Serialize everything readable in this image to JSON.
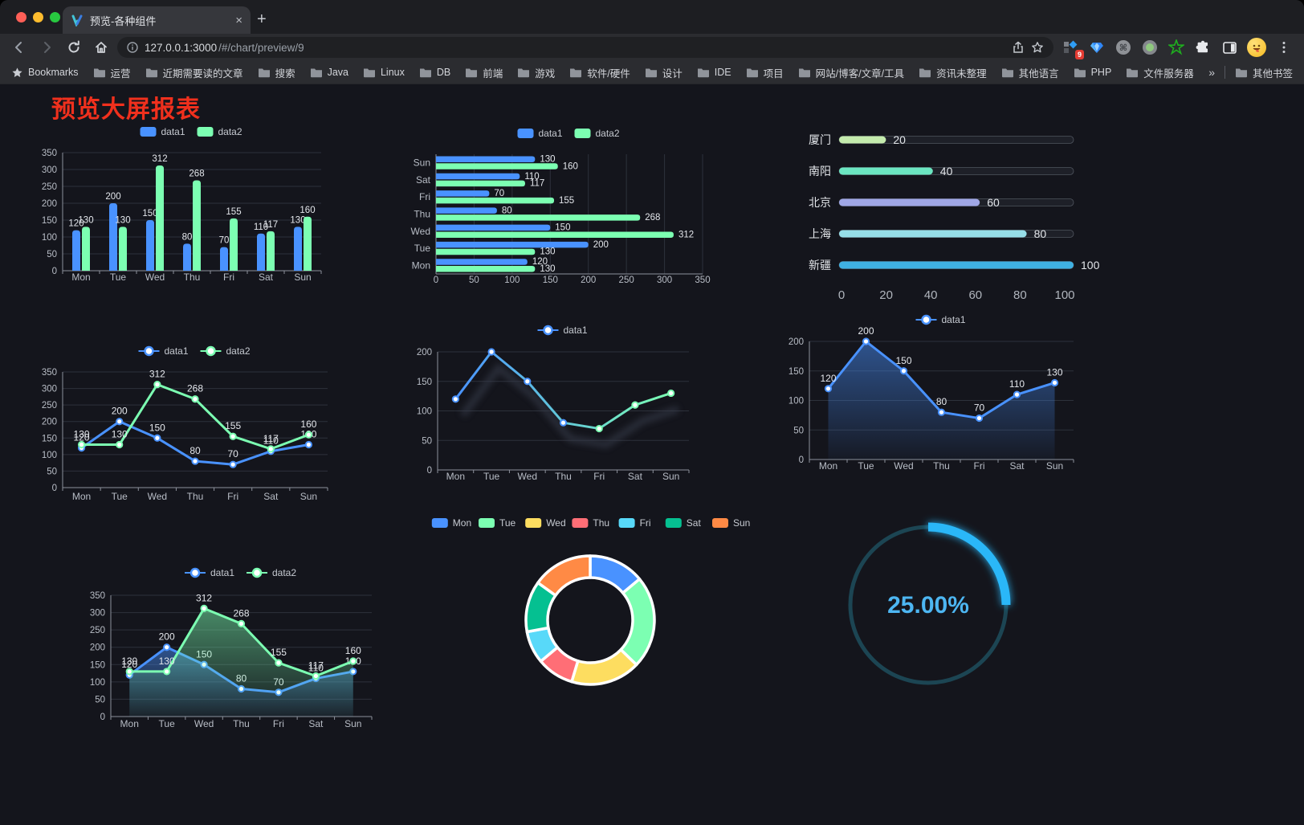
{
  "browser": {
    "tab_title": "预览-各种组件",
    "close_glyph": "×",
    "newtab_glyph": "+",
    "url_host": "127.0.0.1:3000",
    "url_path": "/#/chart/preview/9",
    "extension_badge": "9",
    "bookmarks_label": "Bookmarks",
    "bookmarks": [
      "运营",
      "近期需要读的文章",
      "搜索",
      "Java",
      "Linux",
      "DB",
      "前端",
      "游戏",
      "软件/硬件",
      "设计",
      "IDE",
      "项目",
      "网站/博客/文章/工具",
      "资讯未整理",
      "其他语言",
      "PHP",
      "文件服务器"
    ],
    "bookmarks_overflow": "»",
    "other_bookmarks": "其他书签"
  },
  "page": {
    "title": "预览大屏报表",
    "title_color": "#f0301d",
    "background": "#14151c"
  },
  "colors": {
    "axis_label": "#b8bdc6",
    "grid_line": "#2d313b",
    "axis_line": "#8d919b",
    "value_label": "#e4e7ec",
    "legend_text": "#c6cad1"
  },
  "chart_data": [
    {
      "type": "bar",
      "orientation": "vertical",
      "title": "",
      "categories": [
        "Mon",
        "Tue",
        "Wed",
        "Thu",
        "Fri",
        "Sat",
        "Sun"
      ],
      "series": [
        {
          "name": "data1",
          "color": "#4992ff",
          "values": [
            120,
            200,
            150,
            80,
            70,
            110,
            130
          ]
        },
        {
          "name": "data2",
          "color": "#7cffb2",
          "values": [
            130,
            130,
            312,
            268,
            155,
            117,
            160
          ]
        }
      ],
      "ylim": [
        0,
        350
      ],
      "ytick": 50,
      "legend_position": "top",
      "grid": true,
      "value_labels": true
    },
    {
      "type": "bar",
      "orientation": "horizontal",
      "title": "",
      "categories": [
        "Sun",
        "Sat",
        "Fri",
        "Thu",
        "Wed",
        "Tue",
        "Mon"
      ],
      "series": [
        {
          "name": "data1",
          "color": "#4992ff",
          "values": [
            130,
            110,
            70,
            80,
            150,
            200,
            120
          ]
        },
        {
          "name": "data2",
          "color": "#7cffb2",
          "values": [
            160,
            117,
            155,
            268,
            312,
            130,
            130
          ]
        }
      ],
      "xlim": [
        0,
        350
      ],
      "xtick": 50,
      "legend_position": "top",
      "grid": true,
      "value_labels": true
    },
    {
      "type": "bar",
      "variant": "progress",
      "orientation": "horizontal",
      "title": "",
      "rows": [
        {
          "label": "厦门",
          "value": 20,
          "color": "#c4ebad"
        },
        {
          "label": "南阳",
          "value": 40,
          "color": "#6be6c1"
        },
        {
          "label": "北京",
          "value": 60,
          "color": "#a0a7e6"
        },
        {
          "label": "上海",
          "value": 80,
          "color": "#96dee8"
        },
        {
          "label": "新疆",
          "value": 100,
          "color": "#3fb1e3"
        }
      ],
      "xlim": [
        0,
        100
      ],
      "xticks": [
        0,
        20,
        40,
        60,
        80,
        100
      ]
    },
    {
      "type": "line",
      "title": "",
      "categories": [
        "Mon",
        "Tue",
        "Wed",
        "Thu",
        "Fri",
        "Sat",
        "Sun"
      ],
      "series": [
        {
          "name": "data1",
          "color": "#4992ff",
          "values": [
            120,
            200,
            150,
            80,
            70,
            110,
            130
          ]
        },
        {
          "name": "data2",
          "color": "#7cffb2",
          "values": [
            130,
            130,
            312,
            268,
            155,
            117,
            160
          ]
        }
      ],
      "ylim": [
        0,
        350
      ],
      "ytick": 50,
      "legend_position": "top",
      "value_labels": true
    },
    {
      "type": "line",
      "variant": "gradient-line",
      "title": "",
      "categories": [
        "Mon",
        "Tue",
        "Wed",
        "Thu",
        "Fri",
        "Sat",
        "Sun"
      ],
      "series": [
        {
          "name": "data1",
          "gradient": [
            "#4992ff",
            "#7cffb2"
          ],
          "color": "#4992ff",
          "values": [
            120,
            200,
            150,
            80,
            70,
            110,
            130
          ]
        }
      ],
      "ylim": [
        0,
        200
      ],
      "ytick": 50,
      "legend_position": "top",
      "value_labels": false,
      "shadow": true
    },
    {
      "type": "area",
      "title": "",
      "categories": [
        "Mon",
        "Tue",
        "Wed",
        "Thu",
        "Fri",
        "Sat",
        "Sun"
      ],
      "series": [
        {
          "name": "data1",
          "color": "#4992ff",
          "values": [
            120,
            200,
            150,
            80,
            70,
            110,
            130
          ]
        }
      ],
      "ylim": [
        0,
        200
      ],
      "ytick": 50,
      "legend_position": "top",
      "value_labels": true
    },
    {
      "type": "area",
      "title": "",
      "categories": [
        "Mon",
        "Tue",
        "Wed",
        "Thu",
        "Fri",
        "Sat",
        "Sun"
      ],
      "series": [
        {
          "name": "data1",
          "color": "#4992ff",
          "values": [
            120,
            200,
            150,
            80,
            70,
            110,
            130
          ]
        },
        {
          "name": "data2",
          "color": "#7cffb2",
          "values": [
            130,
            130,
            312,
            268,
            155,
            117,
            160
          ]
        }
      ],
      "ylim": [
        0,
        350
      ],
      "ytick": 50,
      "legend_position": "top",
      "value_labels": true
    },
    {
      "type": "pie",
      "variant": "donut",
      "title": "",
      "categories": [
        "Mon",
        "Tue",
        "Wed",
        "Thu",
        "Fri",
        "Sat",
        "Sun"
      ],
      "values": [
        120,
        200,
        150,
        80,
        70,
        110,
        130
      ],
      "colors": [
        "#4992ff",
        "#7cffb2",
        "#fddd60",
        "#ff6e76",
        "#58d9f9",
        "#05c091",
        "#ff8a45"
      ],
      "legend_position": "top",
      "border_color": "#ffffff"
    },
    {
      "type": "pie",
      "variant": "gauge-progress",
      "title": "",
      "percent": 25,
      "value_label": "25.00%",
      "arc_color": "#2bb7f8",
      "track_color": "#1c4553",
      "text_color": "#4db6f2"
    }
  ]
}
